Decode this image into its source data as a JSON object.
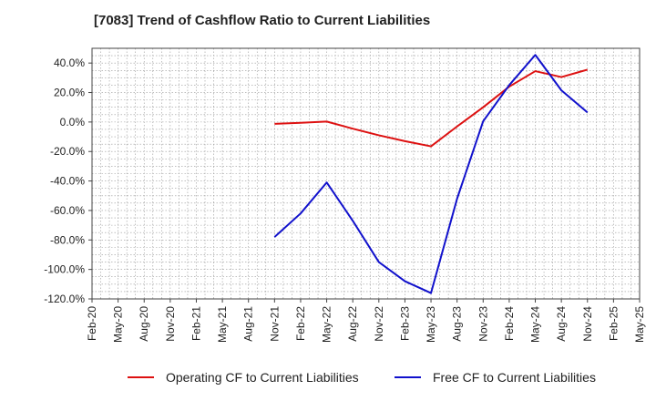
{
  "chart_data": {
    "type": "line",
    "title": "[7083]  Trend of Cashflow Ratio to Current Liabilities",
    "xlabel": "",
    "ylabel": "",
    "x": [
      "Feb-20",
      "May-20",
      "Aug-20",
      "Nov-20",
      "Feb-21",
      "May-21",
      "Aug-21",
      "Nov-21",
      "Feb-22",
      "May-22",
      "Aug-22",
      "Nov-22",
      "Feb-23",
      "May-23",
      "Aug-23",
      "Nov-23",
      "Feb-24",
      "May-24",
      "Aug-24",
      "Nov-24",
      "Feb-25",
      "May-25"
    ],
    "ylim": [
      -120,
      50
    ],
    "yticks": [
      40,
      20,
      0,
      -20,
      -40,
      -60,
      -80,
      -100,
      -120
    ],
    "ytick_labels": [
      "40.0%",
      "20.0%",
      "0.0%",
      "-20.0%",
      "-40.0%",
      "-60.0%",
      "-80.0%",
      "-100.0%",
      "-120.0%"
    ],
    "grid": true,
    "legend_position": "bottom",
    "series": [
      {
        "name": "Operating CF to Current Liabilities",
        "color": "#dd1111",
        "values": [
          null,
          null,
          null,
          null,
          null,
          null,
          null,
          -1.2,
          -0.5,
          0.3,
          -4.5,
          -9.0,
          -13.0,
          -16.5,
          -3.0,
          10.0,
          24.0,
          34.5,
          30.5,
          35.5,
          null,
          null
        ]
      },
      {
        "name": "Free CF to Current Liabilities",
        "color": "#1111cc",
        "values": [
          null,
          null,
          null,
          null,
          null,
          null,
          null,
          -78.0,
          -62.0,
          -41.0,
          -67.0,
          -95.0,
          -108.0,
          -116.0,
          -52.0,
          0.5,
          25.0,
          45.5,
          21.5,
          6.5,
          null,
          null
        ]
      }
    ]
  }
}
